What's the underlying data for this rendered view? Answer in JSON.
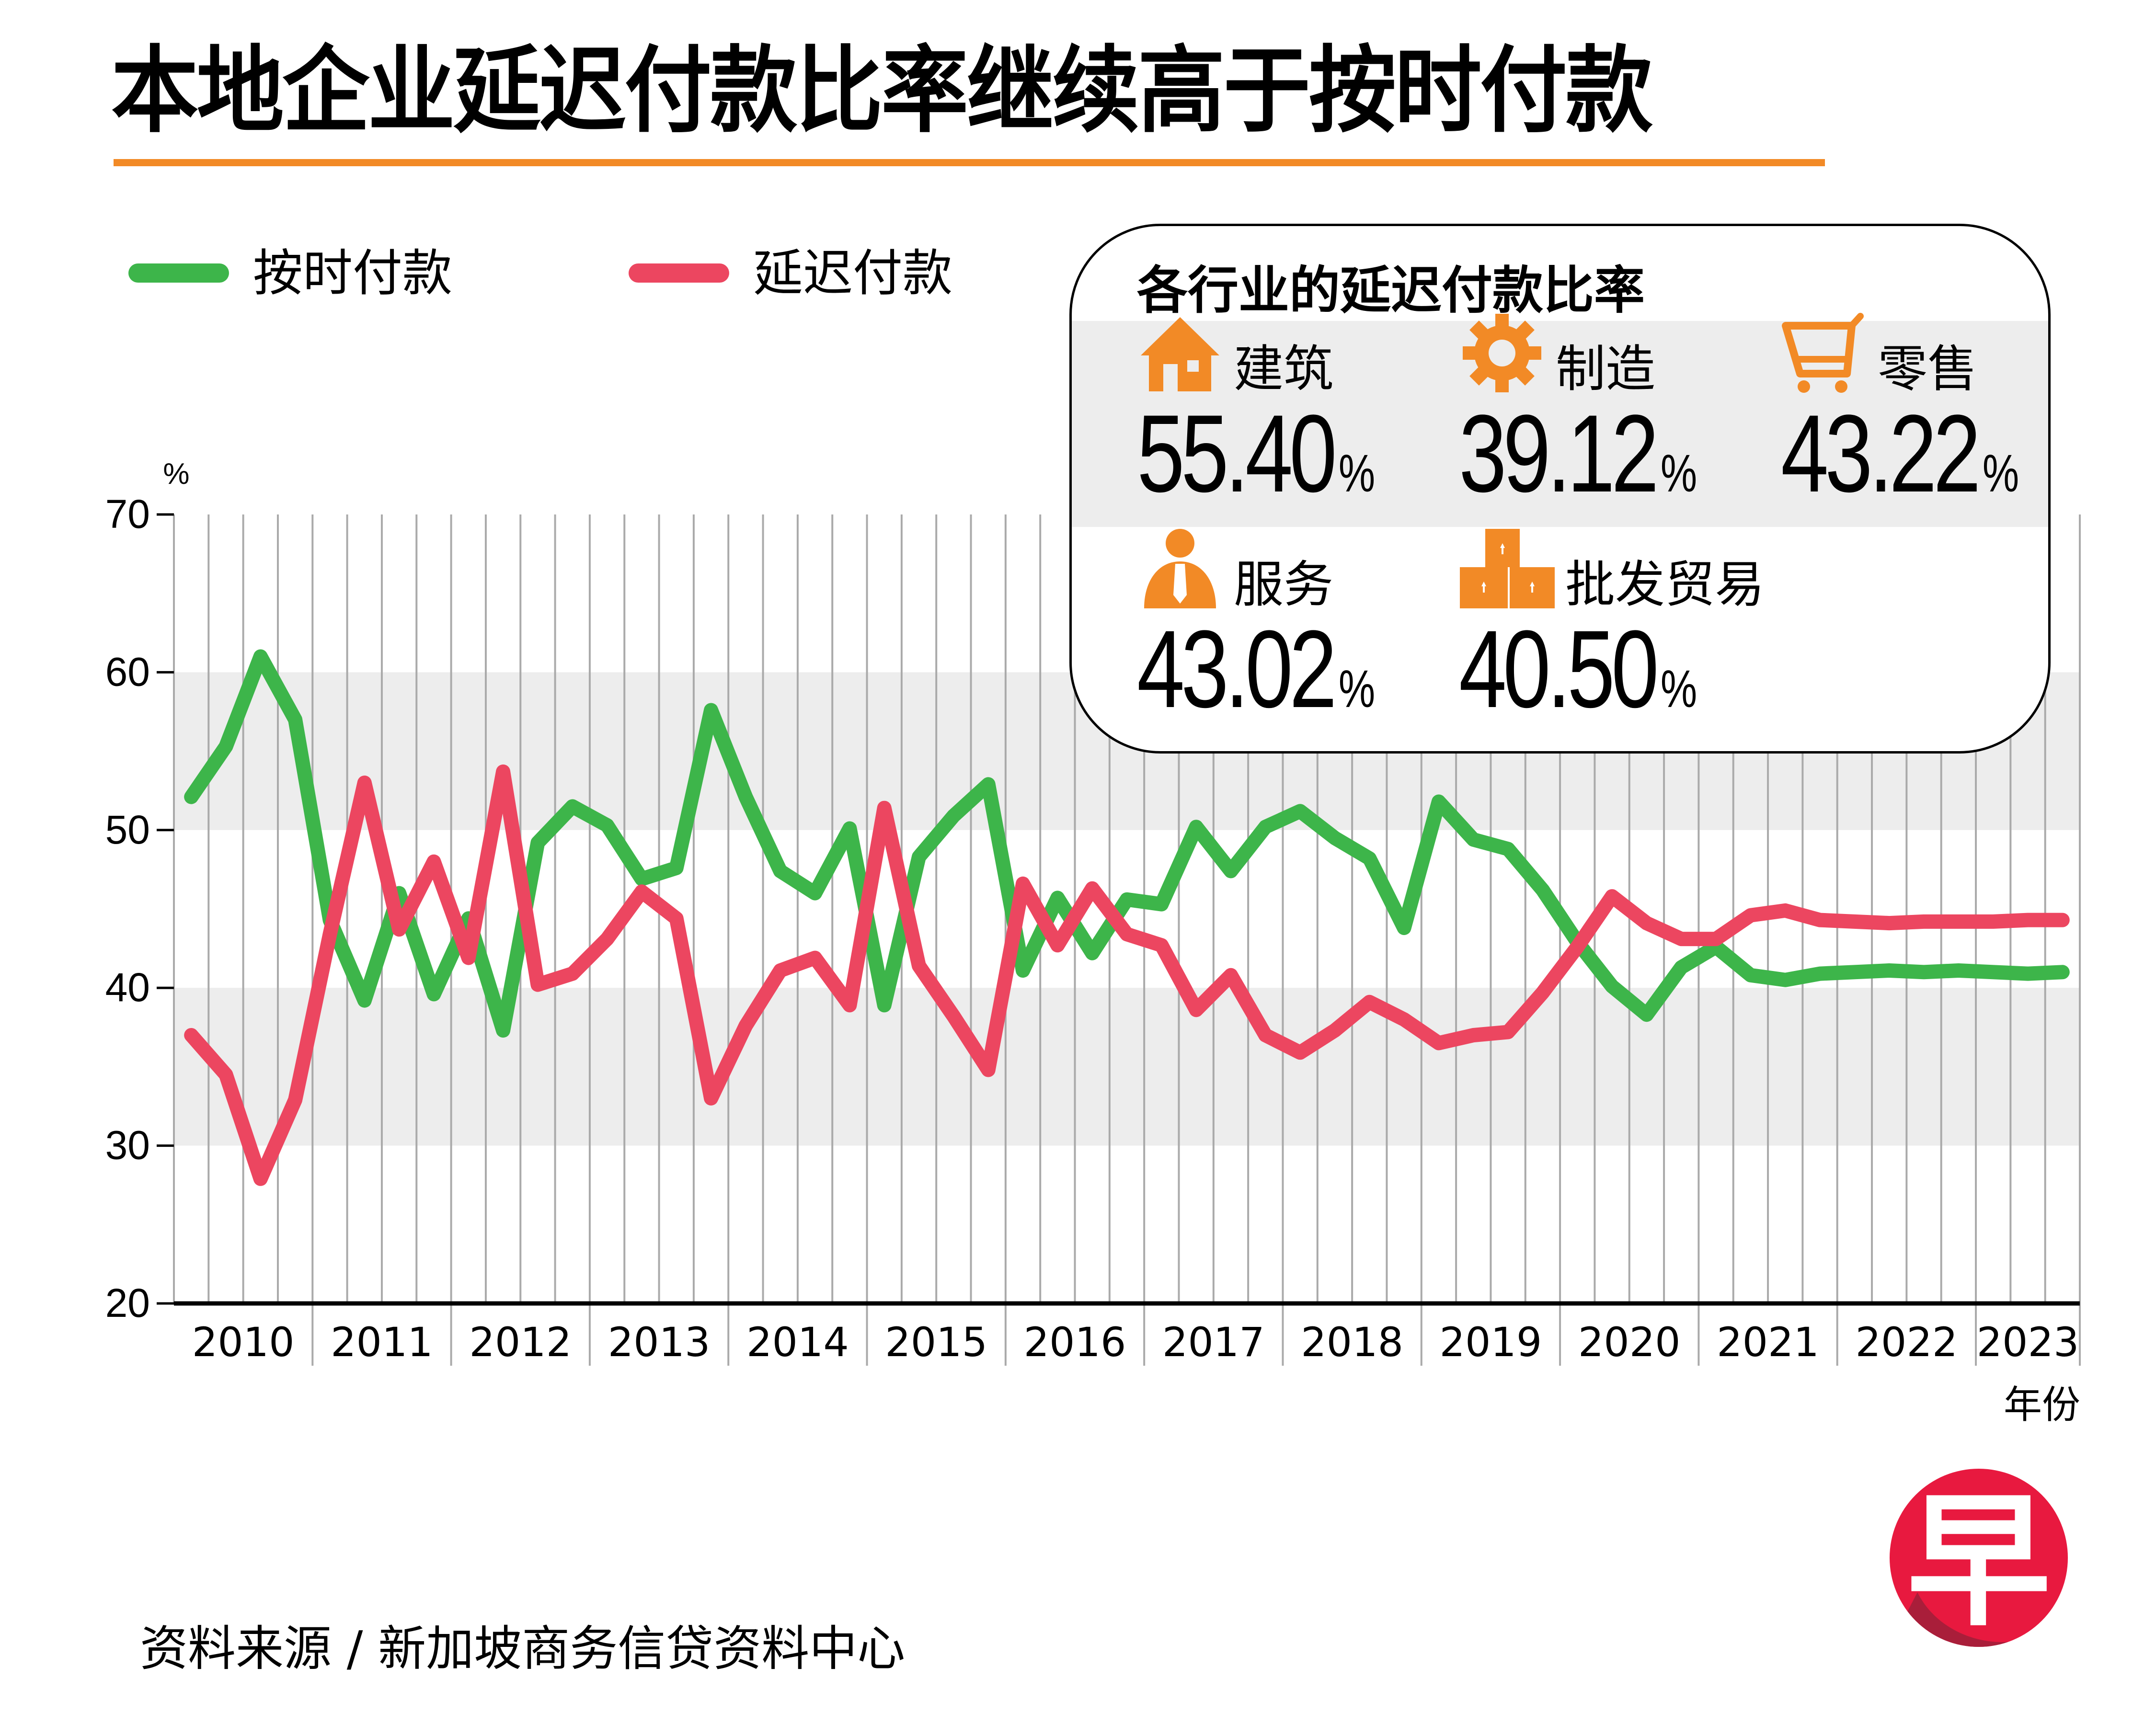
{
  "title": "本地企业延迟付款比率继续高于按时付款",
  "legend": [
    {
      "label": "按时付款",
      "color": "#3DB54A"
    },
    {
      "label": "延迟付款",
      "color": "#EC4660"
    }
  ],
  "infobox": {
    "title": "各行业的延迟付款比率",
    "sectors": [
      {
        "name": "建筑",
        "value": "55.40",
        "unit": "%",
        "icon": "house-icon"
      },
      {
        "name": "制造",
        "value": "39.12",
        "unit": "%",
        "icon": "gear-icon"
      },
      {
        "name": "零售",
        "value": "43.22",
        "unit": "%",
        "icon": "shopping-cart-icon"
      },
      {
        "name": "服务",
        "value": "43.02",
        "unit": "%",
        "icon": "person-tie-icon"
      },
      {
        "name": "批发贸易",
        "value": "40.50",
        "unit": "%",
        "icon": "boxes-icon"
      }
    ],
    "icon_color": "#F28A26"
  },
  "source": "资料来源 / 新加坡商务信贷资料中心",
  "logo": {
    "glyph": "早",
    "color_light": "#E8193F",
    "color_dark": "#A91E3A"
  },
  "chart_data": {
    "type": "line",
    "title": "本地企业延迟付款比率继续高于按时付款",
    "xlabel": "年份",
    "ylabel": "%",
    "ylim": [
      20,
      70
    ],
    "yticks": [
      20,
      30,
      40,
      50,
      60,
      70
    ],
    "grid": true,
    "shaded_bands": [
      [
        30,
        40
      ],
      [
        50,
        60
      ]
    ],
    "legend_position": "top-left",
    "categories": [
      "2010",
      "2011",
      "2012",
      "2013",
      "2014",
      "2015",
      "2016",
      "2017",
      "2018",
      "2019",
      "2020",
      "2021",
      "2022",
      "2023"
    ],
    "quarters_per_year": [
      4,
      4,
      4,
      4,
      4,
      4,
      4,
      4,
      4,
      4,
      4,
      4,
      4,
      3
    ],
    "series": [
      {
        "name": "按时付款",
        "color": "#3DB54A",
        "values": [
          52.1,
          55.3,
          61.0,
          57.0,
          44.3,
          39.2,
          46.0,
          39.6,
          44.4,
          37.3,
          49.2,
          51.5,
          50.3,
          46.9,
          47.6,
          57.6,
          52.1,
          47.4,
          46.0,
          50.1,
          38.9,
          48.3,
          50.9,
          52.9,
          41.1,
          45.7,
          42.2,
          45.6,
          45.3,
          50.2,
          47.4,
          50.2,
          51.2,
          49.5,
          48.2,
          43.8,
          51.8,
          49.4,
          48.8,
          46.2,
          42.9,
          40.1,
          38.3,
          41.3,
          42.6,
          40.8,
          40.5,
          40.9,
          41.0,
          41.1,
          41.0,
          41.1,
          41.0,
          40.9,
          41.0
        ]
      },
      {
        "name": "延迟付款",
        "color": "#EC4660",
        "values": [
          37.0,
          34.5,
          27.9,
          32.9,
          43.4,
          53.0,
          43.7,
          48.0,
          41.9,
          53.7,
          40.2,
          40.9,
          43.1,
          46.1,
          44.4,
          33.0,
          37.6,
          41.1,
          41.9,
          38.9,
          51.4,
          41.4,
          38.2,
          34.8,
          46.6,
          42.7,
          46.3,
          43.4,
          42.7,
          38.6,
          40.8,
          37.0,
          35.9,
          37.3,
          39.1,
          38.0,
          36.5,
          37.0,
          37.2,
          39.7,
          42.6,
          45.8,
          44.1,
          43.1,
          43.1,
          44.6,
          44.9,
          44.3,
          44.2,
          44.1,
          44.2,
          44.2,
          44.2,
          44.3,
          44.3
        ]
      }
    ]
  }
}
